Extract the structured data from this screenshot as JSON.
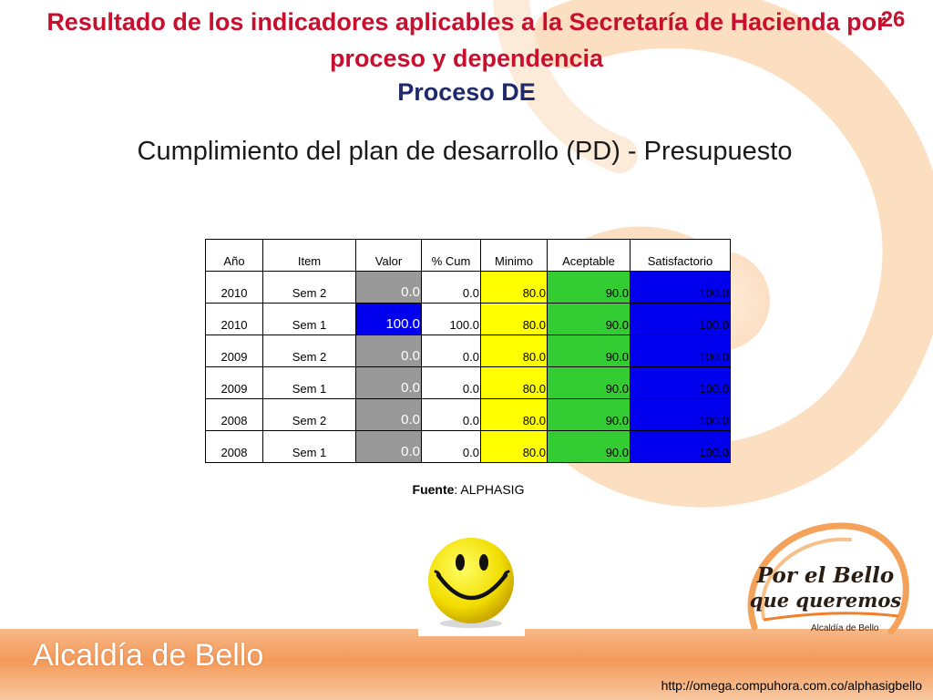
{
  "title": "Resultado de los indicadores aplicables a la Secretaría de Hacienda por proceso y dependencia",
  "slide_number": "26",
  "process": "Proceso DE",
  "subtitle": "Cumplimiento del plan de desarrollo (PD) - Presupuesto",
  "table": {
    "headers": [
      "Año",
      "Item",
      "Valor",
      "% Cum",
      "Minimo",
      "Aceptable",
      "Satisfactorio"
    ],
    "rows": [
      {
        "ano": "2010",
        "item": "Sem 2",
        "valor": "0.0",
        "cum": "0.0",
        "minimo": "80.0",
        "aceptable": "90.0",
        "satisfactorio": "100.0",
        "valor_color": "#999999",
        "valor_text_color": "#ffffff"
      },
      {
        "ano": "2010",
        "item": "Sem 1",
        "valor": "100.0",
        "cum": "100.0",
        "minimo": "80.0",
        "aceptable": "90.0",
        "satisfactorio": "100.0",
        "valor_color": "#0000ee",
        "valor_text_color": "#ffffff"
      },
      {
        "ano": "2009",
        "item": "Sem 2",
        "valor": "0.0",
        "cum": "0.0",
        "minimo": "80.0",
        "aceptable": "90.0",
        "satisfactorio": "100.0",
        "valor_color": "#999999",
        "valor_text_color": "#ffffff"
      },
      {
        "ano": "2009",
        "item": "Sem 1",
        "valor": "0.0",
        "cum": "0.0",
        "minimo": "80.0",
        "aceptable": "90.0",
        "satisfactorio": "100.0",
        "valor_color": "#999999",
        "valor_text_color": "#ffffff"
      },
      {
        "ano": "2008",
        "item": "Sem 2",
        "valor": "0.0",
        "cum": "0.0",
        "minimo": "80.0",
        "aceptable": "90.0",
        "satisfactorio": "100.0",
        "valor_color": "#999999",
        "valor_text_color": "#ffffff"
      },
      {
        "ano": "2008",
        "item": "Sem 1",
        "valor": "0.0",
        "cum": "0.0",
        "minimo": "80.0",
        "aceptable": "90.0",
        "satisfactorio": "100.0",
        "valor_color": "#999999",
        "valor_text_color": "#ffffff"
      }
    ]
  },
  "source": {
    "label": "Fuente",
    "value": ": ALPHASIG"
  },
  "smiley_icon": "smiley-face-icon",
  "slogan": {
    "line1": "Por el Bello",
    "line2": "que queremos",
    "sub": "Alcaldía de Bello"
  },
  "footer": {
    "logo": "Alcaldía de Bello",
    "url": "http://omega.compuhora.com.co/alphasigbello"
  },
  "colors": {
    "title": "#c8102e",
    "process": "#1f2a6b",
    "minimo": "#ffff00",
    "aceptable": "#33cc33",
    "satisfactorio": "#0000ee",
    "valor_gray": "#999999"
  }
}
